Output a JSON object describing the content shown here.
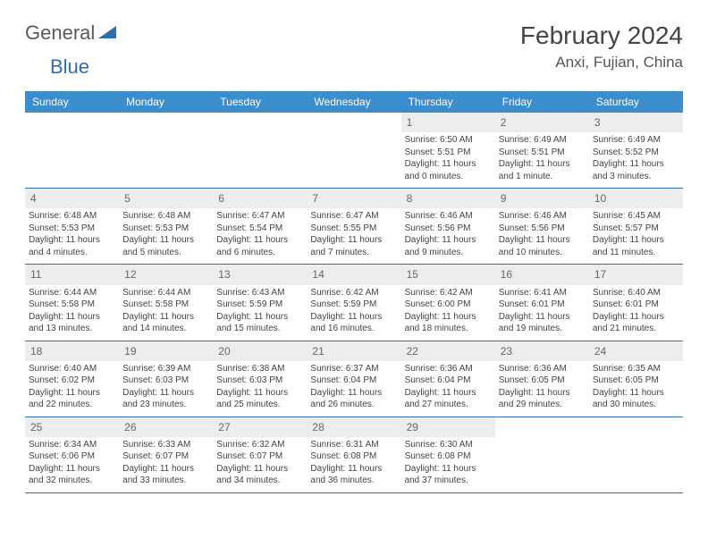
{
  "logo": {
    "text1": "General",
    "text2": "Blue"
  },
  "header": {
    "month": "February 2024",
    "location": "Anxi, Fujian, China"
  },
  "weekdays": [
    "Sunday",
    "Monday",
    "Tuesday",
    "Wednesday",
    "Thursday",
    "Friday",
    "Saturday"
  ],
  "colors": {
    "header_bar": "#3c8dcc",
    "week_divider": "#2f6fb0",
    "daynum_bg": "#ededed",
    "text": "#444444"
  },
  "layout": {
    "first_weekday_index": 4,
    "days_in_month": 29
  },
  "days": {
    "1": {
      "sunrise": "Sunrise: 6:50 AM",
      "sunset": "Sunset: 5:51 PM",
      "dl1": "Daylight: 11 hours",
      "dl2": "and 0 minutes."
    },
    "2": {
      "sunrise": "Sunrise: 6:49 AM",
      "sunset": "Sunset: 5:51 PM",
      "dl1": "Daylight: 11 hours",
      "dl2": "and 1 minute."
    },
    "3": {
      "sunrise": "Sunrise: 6:49 AM",
      "sunset": "Sunset: 5:52 PM",
      "dl1": "Daylight: 11 hours",
      "dl2": "and 3 minutes."
    },
    "4": {
      "sunrise": "Sunrise: 6:48 AM",
      "sunset": "Sunset: 5:53 PM",
      "dl1": "Daylight: 11 hours",
      "dl2": "and 4 minutes."
    },
    "5": {
      "sunrise": "Sunrise: 6:48 AM",
      "sunset": "Sunset: 5:53 PM",
      "dl1": "Daylight: 11 hours",
      "dl2": "and 5 minutes."
    },
    "6": {
      "sunrise": "Sunrise: 6:47 AM",
      "sunset": "Sunset: 5:54 PM",
      "dl1": "Daylight: 11 hours",
      "dl2": "and 6 minutes."
    },
    "7": {
      "sunrise": "Sunrise: 6:47 AM",
      "sunset": "Sunset: 5:55 PM",
      "dl1": "Daylight: 11 hours",
      "dl2": "and 7 minutes."
    },
    "8": {
      "sunrise": "Sunrise: 6:46 AM",
      "sunset": "Sunset: 5:56 PM",
      "dl1": "Daylight: 11 hours",
      "dl2": "and 9 minutes."
    },
    "9": {
      "sunrise": "Sunrise: 6:46 AM",
      "sunset": "Sunset: 5:56 PM",
      "dl1": "Daylight: 11 hours",
      "dl2": "and 10 minutes."
    },
    "10": {
      "sunrise": "Sunrise: 6:45 AM",
      "sunset": "Sunset: 5:57 PM",
      "dl1": "Daylight: 11 hours",
      "dl2": "and 11 minutes."
    },
    "11": {
      "sunrise": "Sunrise: 6:44 AM",
      "sunset": "Sunset: 5:58 PM",
      "dl1": "Daylight: 11 hours",
      "dl2": "and 13 minutes."
    },
    "12": {
      "sunrise": "Sunrise: 6:44 AM",
      "sunset": "Sunset: 5:58 PM",
      "dl1": "Daylight: 11 hours",
      "dl2": "and 14 minutes."
    },
    "13": {
      "sunrise": "Sunrise: 6:43 AM",
      "sunset": "Sunset: 5:59 PM",
      "dl1": "Daylight: 11 hours",
      "dl2": "and 15 minutes."
    },
    "14": {
      "sunrise": "Sunrise: 6:42 AM",
      "sunset": "Sunset: 5:59 PM",
      "dl1": "Daylight: 11 hours",
      "dl2": "and 16 minutes."
    },
    "15": {
      "sunrise": "Sunrise: 6:42 AM",
      "sunset": "Sunset: 6:00 PM",
      "dl1": "Daylight: 11 hours",
      "dl2": "and 18 minutes."
    },
    "16": {
      "sunrise": "Sunrise: 6:41 AM",
      "sunset": "Sunset: 6:01 PM",
      "dl1": "Daylight: 11 hours",
      "dl2": "and 19 minutes."
    },
    "17": {
      "sunrise": "Sunrise: 6:40 AM",
      "sunset": "Sunset: 6:01 PM",
      "dl1": "Daylight: 11 hours",
      "dl2": "and 21 minutes."
    },
    "18": {
      "sunrise": "Sunrise: 6:40 AM",
      "sunset": "Sunset: 6:02 PM",
      "dl1": "Daylight: 11 hours",
      "dl2": "and 22 minutes."
    },
    "19": {
      "sunrise": "Sunrise: 6:39 AM",
      "sunset": "Sunset: 6:03 PM",
      "dl1": "Daylight: 11 hours",
      "dl2": "and 23 minutes."
    },
    "20": {
      "sunrise": "Sunrise: 6:38 AM",
      "sunset": "Sunset: 6:03 PM",
      "dl1": "Daylight: 11 hours",
      "dl2": "and 25 minutes."
    },
    "21": {
      "sunrise": "Sunrise: 6:37 AM",
      "sunset": "Sunset: 6:04 PM",
      "dl1": "Daylight: 11 hours",
      "dl2": "and 26 minutes."
    },
    "22": {
      "sunrise": "Sunrise: 6:36 AM",
      "sunset": "Sunset: 6:04 PM",
      "dl1": "Daylight: 11 hours",
      "dl2": "and 27 minutes."
    },
    "23": {
      "sunrise": "Sunrise: 6:36 AM",
      "sunset": "Sunset: 6:05 PM",
      "dl1": "Daylight: 11 hours",
      "dl2": "and 29 minutes."
    },
    "24": {
      "sunrise": "Sunrise: 6:35 AM",
      "sunset": "Sunset: 6:05 PM",
      "dl1": "Daylight: 11 hours",
      "dl2": "and 30 minutes."
    },
    "25": {
      "sunrise": "Sunrise: 6:34 AM",
      "sunset": "Sunset: 6:06 PM",
      "dl1": "Daylight: 11 hours",
      "dl2": "and 32 minutes."
    },
    "26": {
      "sunrise": "Sunrise: 6:33 AM",
      "sunset": "Sunset: 6:07 PM",
      "dl1": "Daylight: 11 hours",
      "dl2": "and 33 minutes."
    },
    "27": {
      "sunrise": "Sunrise: 6:32 AM",
      "sunset": "Sunset: 6:07 PM",
      "dl1": "Daylight: 11 hours",
      "dl2": "and 34 minutes."
    },
    "28": {
      "sunrise": "Sunrise: 6:31 AM",
      "sunset": "Sunset: 6:08 PM",
      "dl1": "Daylight: 11 hours",
      "dl2": "and 36 minutes."
    },
    "29": {
      "sunrise": "Sunrise: 6:30 AM",
      "sunset": "Sunset: 6:08 PM",
      "dl1": "Daylight: 11 hours",
      "dl2": "and 37 minutes."
    }
  }
}
